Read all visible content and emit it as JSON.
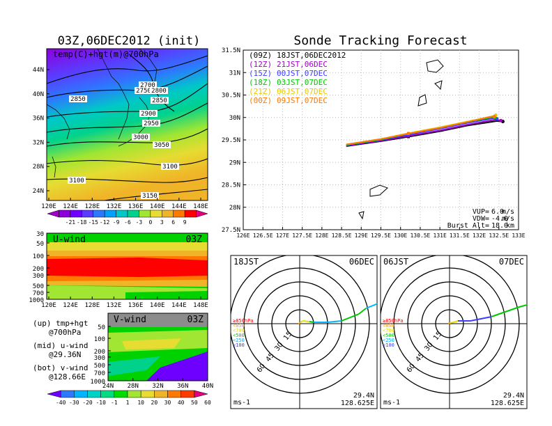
{
  "left_title": "03Z,06DEC2012 (init)",
  "right_title": "Sonde Tracking Forecast",
  "map_panel": {
    "label": "temp(C)+hgt(m)@700hPa",
    "x_ticks": [
      "120E",
      "124E",
      "128E",
      "132E",
      "136E",
      "140E",
      "144E",
      "148E"
    ],
    "y_ticks": [
      "44N",
      "40N",
      "36N",
      "32N",
      "28N",
      "24N"
    ],
    "contour_labels": [
      "2700",
      "2750",
      "2800",
      "2850",
      "2850",
      "2900",
      "2950",
      "3000",
      "3050",
      "3100",
      "3100",
      "3150"
    ],
    "colorbar_labels": [
      "-21",
      "-18",
      "-15",
      "-12",
      "-9",
      "-6",
      "-3",
      "0",
      "3",
      "6",
      "9"
    ],
    "colorbar_colors": [
      "#a000c8",
      "#8c00dc",
      "#6e00ff",
      "#5a3cff",
      "#2d78ff",
      "#00a0ff",
      "#00c8c8",
      "#00d28c",
      "#a0e632",
      "#e6dc32",
      "#f0b428",
      "#ff7800",
      "#ff0000",
      "#e6007e"
    ]
  },
  "u_panel": {
    "label": "U-wind",
    "time": "03Z",
    "y_ticks": [
      "30",
      "50",
      "100",
      "200",
      "300",
      "500",
      "700",
      "1000"
    ],
    "x_ticks": [
      "120E",
      "124E",
      "128E",
      "132E",
      "136E",
      "140E",
      "144E",
      "148E"
    ]
  },
  "v_panel": {
    "label": "V-wind",
    "time": "03Z",
    "y_ticks": [
      "50",
      "100",
      "200",
      "300",
      "500",
      "700",
      "1000"
    ],
    "x_ticks": [
      "24N",
      "28N",
      "32N",
      "36N",
      "40N"
    ]
  },
  "notes": [
    {
      "key": "(up) tmp+hgt",
      "val": "@700hPa"
    },
    {
      "key": "(mid) u-wind",
      "val": "@29.36N"
    },
    {
      "key": "(bot) v-wind",
      "val": "@128.66E"
    }
  ],
  "wind_colorbar": {
    "labels": [
      "-40",
      "-30",
      "-20",
      "-10",
      "-1",
      "1",
      "10",
      "20",
      "30",
      "40",
      "50",
      "60"
    ],
    "colors": [
      "#6e00ff",
      "#2d78ff",
      "#00b4ff",
      "#00d2c8",
      "#00dc82",
      "#00dc00",
      "#a0e632",
      "#e6dc32",
      "#f0b428",
      "#ff7800",
      "#ff3c00",
      "#e6007e"
    ]
  },
  "chart_data": {
    "type": "line",
    "title": "Sonde Tracking Forecast",
    "xlim": [
      126,
      133
    ],
    "ylim": [
      27.5,
      31.5
    ],
    "x_ticks": [
      "126E",
      "126.5E",
      "127E",
      "127.5E",
      "128E",
      "128.5E",
      "129E",
      "129.5E",
      "130E",
      "130.5E",
      "131E",
      "131.5E",
      "132E",
      "132.5E",
      "133E"
    ],
    "y_ticks": [
      "31.5N",
      "31N",
      "30.5N",
      "30N",
      "29.5N",
      "29N",
      "28.5N",
      "28N",
      "27.5N"
    ],
    "legend_position": "top-left",
    "series": [
      {
        "name": "(09Z)",
        "label": "18JST,06DEC2012",
        "color": "#000000",
        "x": [
          128.62,
          129.5,
          130.2,
          131.0,
          131.7,
          132.45,
          132.6
        ],
        "y": [
          29.36,
          29.47,
          29.57,
          29.69,
          29.82,
          29.92,
          29.91
        ]
      },
      {
        "name": "(12Z)",
        "label": "21JST,06DEC",
        "color": "#a000c8",
        "x": [
          128.62,
          129.5,
          130.2,
          131.0,
          131.7,
          132.4,
          132.55
        ],
        "y": [
          29.37,
          29.48,
          29.59,
          29.71,
          29.84,
          29.95,
          29.93
        ]
      },
      {
        "name": "(15Z)",
        "label": "00JST,07DEC",
        "color": "#3c3cff",
        "x": [
          128.62,
          129.5,
          130.2,
          131.0,
          131.7,
          132.35,
          132.45
        ],
        "y": [
          29.38,
          29.5,
          29.62,
          29.75,
          29.88,
          29.98,
          29.97
        ]
      },
      {
        "name": "(18Z)",
        "label": "03JST,07DEC",
        "color": "#00c800",
        "x": [
          128.62,
          129.5,
          130.2,
          131.0,
          131.7,
          132.35,
          132.4
        ],
        "y": [
          29.39,
          29.51,
          29.64,
          29.77,
          29.9,
          30.01,
          30.0
        ]
      },
      {
        "name": "(21Z)",
        "label": "06JST,07DEC",
        "color": "#e6c800",
        "x": [
          128.62,
          129.5,
          130.2,
          131.0,
          131.7,
          132.35,
          132.42
        ],
        "y": [
          29.4,
          29.52,
          29.65,
          29.78,
          29.91,
          30.03,
          30.05
        ]
      },
      {
        "name": "(00Z)",
        "label": "09JST,07DEC",
        "color": "#ff7800",
        "x": [
          128.62,
          129.5,
          130.2,
          131.0,
          131.7,
          132.3,
          132.38
        ],
        "y": [
          29.4,
          29.52,
          29.64,
          29.77,
          29.9,
          30.02,
          30.02
        ]
      }
    ],
    "params": [
      {
        "label": "VUP=",
        "value": "6.0",
        "unit": "m/s"
      },
      {
        "label": "VDW=",
        "value": "-4.0",
        "unit": "m/s"
      },
      {
        "label": "Burst Alt=",
        "value": "18.0",
        "unit": "km"
      }
    ]
  },
  "hodographs": [
    {
      "jst": "18JST",
      "date": "06DEC",
      "unit": "ms-1",
      "lat": "29.4N",
      "lon": "128.625E",
      "ring_labels": [
        "15",
        "30",
        "45",
        "60"
      ],
      "layer_labels": [
        "≥850hPa",
        "<850",
        "<700",
        "<500",
        "<250",
        "<100"
      ],
      "layer_colors": [
        "#ff0000",
        "#ff9600",
        "#e6dc00",
        "#00c800",
        "#00b4ff",
        "#3c3cff"
      ]
    },
    {
      "jst": "06JST",
      "date": "07DEC",
      "unit": "ms-1",
      "lat": "29.4N",
      "lon": "128.625E",
      "ring_labels": [
        "15",
        "30",
        "45",
        "60"
      ],
      "layer_labels": [
        "≥850hPa",
        "<850",
        "<700",
        "<500",
        "<250",
        "<100"
      ],
      "layer_colors": [
        "#ff0000",
        "#ff9600",
        "#e6dc00",
        "#00c800",
        "#00b4ff",
        "#3c3cff"
      ]
    }
  ]
}
